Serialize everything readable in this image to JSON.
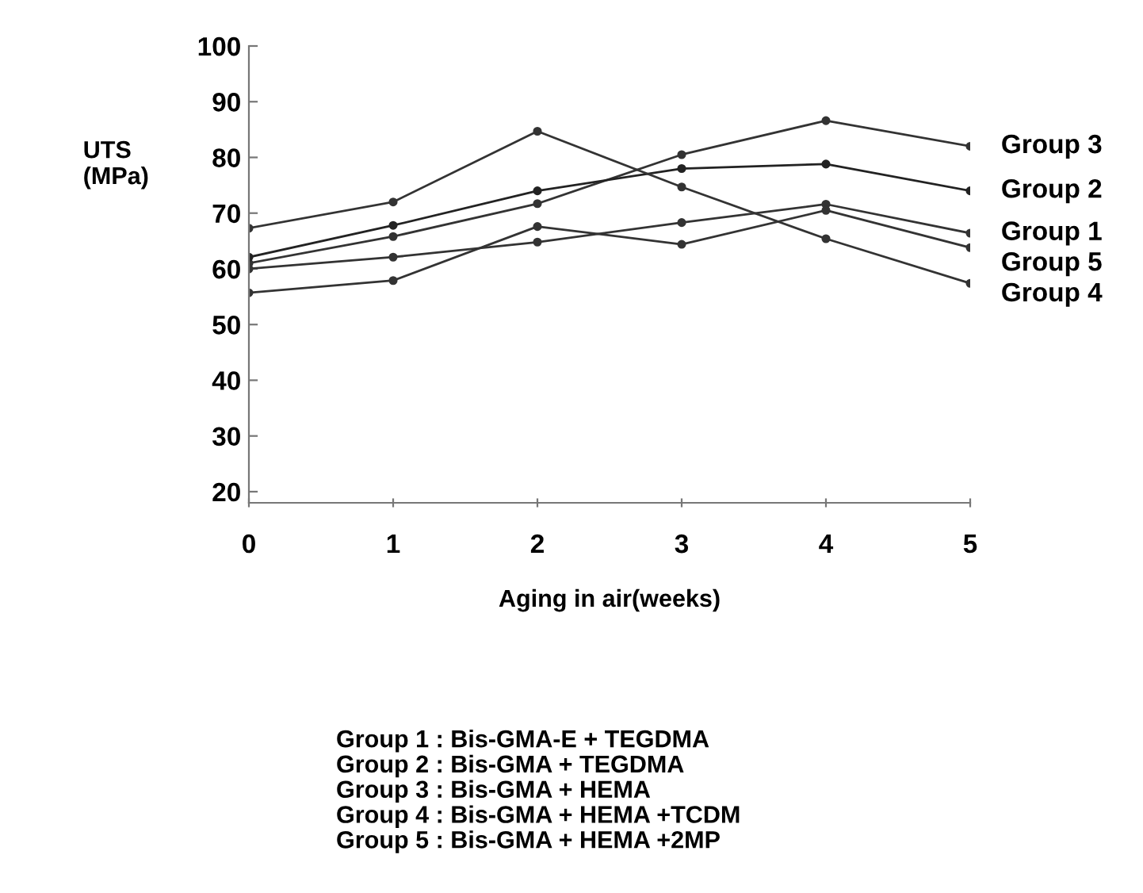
{
  "chart_data": {
    "type": "line",
    "ylabel": "UTS\n(MPa)",
    "xlabel": "Aging in air(weeks)",
    "x": [
      0,
      1,
      2,
      3,
      4,
      5
    ],
    "series": [
      {
        "name": "Group 3",
        "color": "#333333",
        "values": [
          61,
          65.8,
          71.7,
          80.5,
          86.6,
          82
        ]
      },
      {
        "name": "Group 2",
        "color": "#222222",
        "values": [
          62.1,
          67.8,
          74,
          78,
          78.8,
          74
        ]
      },
      {
        "name": "Group 1",
        "color": "#333333",
        "values": [
          60,
          62.1,
          64.8,
          68.3,
          71.6,
          66.4
        ]
      },
      {
        "name": "Group 5",
        "color": "#333333",
        "values": [
          55.7,
          57.9,
          67.6,
          64.4,
          70.5,
          63.8
        ]
      },
      {
        "name": "Group 4",
        "color": "#333333",
        "values": [
          67.3,
          72,
          84.7,
          74.7,
          65.4,
          57.4
        ]
      }
    ],
    "xlim": [
      0,
      5
    ],
    "ylim": [
      18,
      100
    ],
    "xticks": [
      0,
      1,
      2,
      3,
      4,
      5
    ],
    "yticks": [
      20,
      30,
      40,
      50,
      60,
      70,
      80,
      90,
      100
    ],
    "grid": false,
    "legend": false,
    "marker": "circle",
    "line_style": "solid",
    "annotations": [
      "Group 1 : Bis-GMA-E + TEGDMA\nGroup 2 : Bis-GMA + TEGDMA\nGroup 3 : Bis-GMA + HEMA\nGroup 4 : Bis-GMA + HEMA +TCDM\nGroup 5 : Bis-GMA + HEMA +2MP"
    ]
  }
}
